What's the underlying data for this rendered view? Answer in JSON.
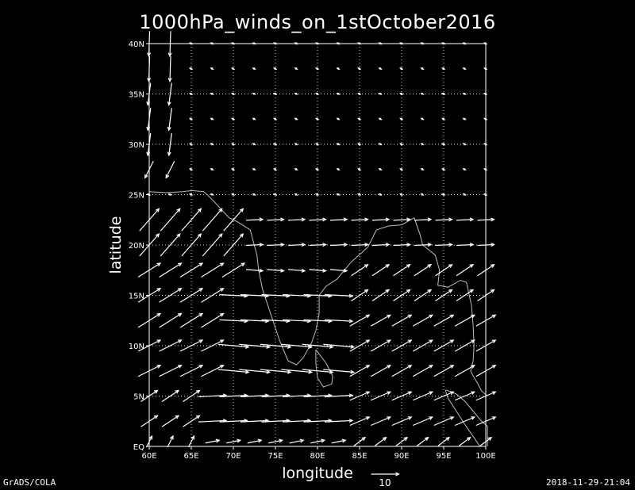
{
  "chart_data": {
    "type": "vector",
    "title": "1000hPa_winds_on_1stOctober2016",
    "xlabel": "longitude",
    "ylabel": "latitude",
    "xlim": [
      60,
      100
    ],
    "ylim": [
      0,
      40
    ],
    "x_ticks": [
      "60E",
      "65E",
      "70E",
      "75E",
      "80E",
      "85E",
      "90E",
      "95E",
      "100E"
    ],
    "y_ticks": [
      "EQ",
      "5N",
      "10N",
      "15N",
      "20N",
      "25N",
      "30N",
      "35N",
      "40N"
    ],
    "grid": true,
    "reference_vector": {
      "label": "10",
      "magnitude": 10
    },
    "grid_lon": [
      60,
      62.5,
      65,
      67.5,
      70,
      72.5,
      75,
      77.5,
      80,
      82.5,
      85,
      87.5,
      90,
      92.5,
      95,
      97.5,
      100
    ],
    "grid_lat": [
      0,
      2.5,
      5,
      7.5,
      10,
      12.5,
      15,
      17.5,
      20,
      22.5,
      25,
      27.5,
      30,
      32.5,
      35,
      37.5,
      40
    ],
    "regions": [
      {
        "lat_min": 37,
        "lat_max": 40.1,
        "lon_min": 60,
        "lon_max": 65,
        "u": -0.3,
        "v": -9
      },
      {
        "lat_min": 30,
        "lat_max": 37,
        "lon_min": 60,
        "lon_max": 64,
        "u": -1,
        "v": -8
      },
      {
        "lat_min": 27.5,
        "lat_max": 30,
        "lon_min": 60,
        "lon_max": 64,
        "u": -3,
        "v": -6
      },
      {
        "lat_min": 25,
        "lat_max": 40.1,
        "lon_min": 64,
        "lon_max": 100.1,
        "u": -1,
        "v": 0.5
      },
      {
        "lat_min": 20,
        "lat_max": 25,
        "lon_min": 60,
        "lon_max": 72,
        "u": 7,
        "v": 8
      },
      {
        "lat_min": 20,
        "lat_max": 25,
        "lon_min": 72,
        "lon_max": 100.1,
        "u": 6,
        "v": 0.3
      },
      {
        "lat_min": 17.5,
        "lat_max": 20,
        "lon_min": 60,
        "lon_max": 72,
        "u": 8,
        "v": 5
      },
      {
        "lat_min": 17.5,
        "lat_max": 20,
        "lon_min": 72,
        "lon_max": 84,
        "u": 6,
        "v": -0.5
      },
      {
        "lat_min": 15,
        "lat_max": 20,
        "lon_min": 84,
        "lon_max": 100.1,
        "u": 6,
        "v": 4
      },
      {
        "lat_min": 12.5,
        "lat_max": 17.5,
        "lon_min": 60,
        "lon_max": 70,
        "u": 8,
        "v": 5
      },
      {
        "lat_min": 12.5,
        "lat_max": 17.5,
        "lon_min": 70,
        "lon_max": 84,
        "u": 10,
        "v": -0.5
      },
      {
        "lat_min": 7.5,
        "lat_max": 15,
        "lon_min": 84,
        "lon_max": 100.1,
        "u": 7,
        "v": 4
      },
      {
        "lat_min": 7.5,
        "lat_max": 12.5,
        "lon_min": 60,
        "lon_max": 70,
        "u": 8,
        "v": 4
      },
      {
        "lat_min": 7.5,
        "lat_max": 12.5,
        "lon_min": 70,
        "lon_max": 84,
        "u": 11,
        "v": -1
      },
      {
        "lat_min": 2.5,
        "lat_max": 7.5,
        "lon_min": 60,
        "lon_max": 66,
        "u": 6,
        "v": 4
      },
      {
        "lat_min": 2.5,
        "lat_max": 7.5,
        "lon_min": 66,
        "lon_max": 84,
        "u": 10,
        "v": 0.5
      },
      {
        "lat_min": 2.5,
        "lat_max": 7.5,
        "lon_min": 84,
        "lon_max": 100.1,
        "u": 7,
        "v": 3
      },
      {
        "lat_min": 0,
        "lat_max": 2.5,
        "lon_min": 60,
        "lon_max": 66,
        "u": 2,
        "v": 4
      },
      {
        "lat_min": 0,
        "lat_max": 2.5,
        "lon_min": 66,
        "lon_max": 84,
        "u": 5,
        "v": 1
      },
      {
        "lat_min": 0,
        "lat_max": 2.5,
        "lon_min": 84,
        "lon_max": 100.1,
        "u": 4,
        "v": 3
      }
    ],
    "coastlines": [
      [
        [
          60,
          25.3
        ],
        [
          62,
          25.2
        ],
        [
          64,
          25.3
        ],
        [
          65,
          25.4
        ],
        [
          66.5,
          25.3
        ],
        [
          67.5,
          24.5
        ],
        [
          68.5,
          23.6
        ],
        [
          69.5,
          22.7
        ],
        [
          70.5,
          22.3
        ],
        [
          72,
          21.5
        ],
        [
          72.8,
          19
        ],
        [
          73,
          17.5
        ],
        [
          73.5,
          15.5
        ],
        [
          74.5,
          13
        ],
        [
          75.5,
          10.5
        ],
        [
          76.5,
          8.5
        ],
        [
          77.5,
          8.1
        ],
        [
          78.3,
          8.8
        ],
        [
          79.3,
          10.3
        ],
        [
          79.8,
          11.5
        ],
        [
          80.2,
          13.2
        ],
        [
          80.2,
          15
        ],
        [
          81,
          15.9
        ],
        [
          82.3,
          16.6
        ],
        [
          84,
          18.3
        ],
        [
          86,
          19.8
        ],
        [
          87,
          21.5
        ],
        [
          88.5,
          21.9
        ],
        [
          90,
          22
        ],
        [
          91.5,
          22.7
        ],
        [
          92.2,
          21
        ],
        [
          92.5,
          20
        ],
        [
          94,
          19
        ],
        [
          94.5,
          17.5
        ],
        [
          94.3,
          16
        ],
        [
          95.5,
          15.8
        ],
        [
          97,
          16.5
        ],
        [
          97.7,
          16.3
        ],
        [
          98.3,
          14
        ],
        [
          98.5,
          12
        ],
        [
          98.6,
          10
        ],
        [
          98.5,
          8.5
        ],
        [
          98.2,
          7.5
        ],
        [
          98.5,
          7
        ],
        [
          99,
          6.3
        ],
        [
          99.5,
          5.5
        ],
        [
          100.2,
          5
        ]
      ],
      [
        [
          79.8,
          9.6
        ],
        [
          81,
          8.3
        ],
        [
          81.8,
          7
        ],
        [
          81.7,
          6.2
        ],
        [
          80.7,
          5.9
        ],
        [
          80,
          6.8
        ],
        [
          79.8,
          8.2
        ],
        [
          79.8,
          9.6
        ]
      ],
      [
        [
          95.3,
          5.6
        ],
        [
          96.5,
          5.2
        ],
        [
          97.5,
          4.5
        ],
        [
          98.5,
          3.5
        ],
        [
          99.5,
          2.5
        ],
        [
          100.2,
          2
        ],
        [
          100.2,
          0
        ]
      ],
      [
        [
          95.2,
          5.6
        ],
        [
          95.5,
          4.8
        ],
        [
          96.5,
          3.5
        ],
        [
          97.5,
          2.2
        ],
        [
          98.5,
          1
        ],
        [
          99.3,
          0
        ]
      ]
    ]
  },
  "footer": {
    "left": "GrADS/COLA",
    "right": "2018-11-29-21:04"
  },
  "colors": {
    "background": "#000000",
    "foreground": "#ffffff"
  }
}
